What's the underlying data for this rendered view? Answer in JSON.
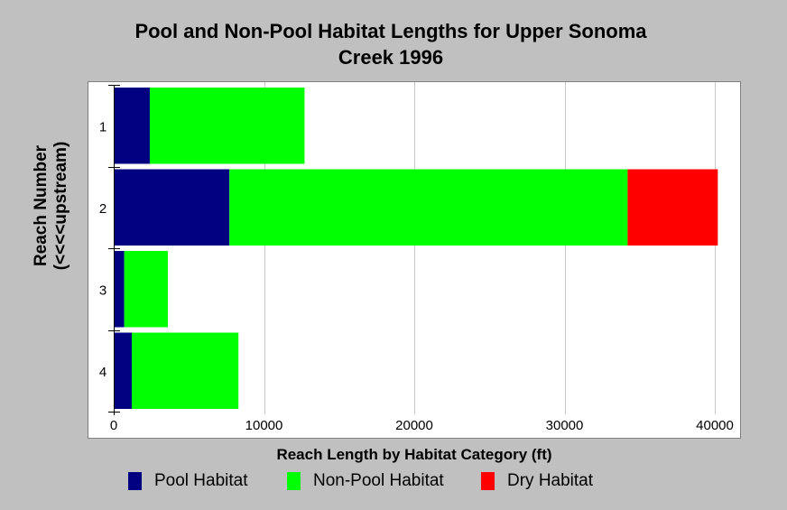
{
  "chart_data": {
    "type": "bar",
    "orientation": "horizontal",
    "stacked": true,
    "title_line1": "Pool and Non-Pool Habitat Lengths for Upper Sonoma",
    "title_line2": "Creek 1996",
    "xlabel": "Reach Length by Habitat Category (ft)",
    "ylabel_line1": "Reach Number",
    "ylabel_line2": "(<<<<upstream)",
    "categories": [
      "1",
      "2",
      "3",
      "4"
    ],
    "series": [
      {
        "name": "Pool Habitat",
        "color": "#000080",
        "values": [
          2400,
          7700,
          700,
          1200
        ]
      },
      {
        "name": "Non-Pool Habitat",
        "color": "#00ff00",
        "values": [
          10300,
          26500,
          2900,
          7100
        ]
      },
      {
        "name": "Dry Habitat",
        "color": "#ff0000",
        "values": [
          0,
          6000,
          0,
          0
        ]
      }
    ],
    "xlim": [
      0,
      40000
    ],
    "xticks": [
      0,
      10000,
      20000,
      30000,
      40000
    ],
    "xtick_labels": [
      "0",
      "10000",
      "20000",
      "30000",
      "40000"
    ],
    "grid": "vertical",
    "legend_position": "bottom"
  }
}
